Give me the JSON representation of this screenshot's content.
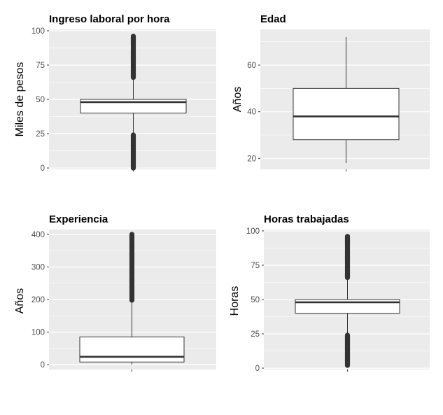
{
  "chart_data": [
    {
      "type": "boxplot",
      "title": "Ingreso laboral por hora",
      "xlabel": "",
      "ylabel": "Miles de pesos",
      "ylim": [
        -1,
        101
      ],
      "yticks": [
        0,
        25,
        50,
        75,
        100
      ],
      "yticklabels": [
        "0",
        "25",
        "50",
        "75",
        "100"
      ],
      "box": {
        "min": 25,
        "q1": 40,
        "median": 48,
        "q3": 50,
        "max": 65
      },
      "outliers_ranges": [
        [
          0,
          24
        ],
        [
          66,
          96
        ]
      ],
      "grid": true
    },
    {
      "type": "boxplot",
      "title": "Edad",
      "xlabel": "",
      "ylabel": "Años",
      "ylim": [
        15.3,
        75.3
      ],
      "yticks": [
        20,
        40,
        60
      ],
      "yticklabels": [
        "20",
        "40",
        "60"
      ],
      "box": {
        "min": 18,
        "q1": 28,
        "median": 38,
        "q3": 50,
        "max": 72
      },
      "outliers_ranges": [],
      "grid": true
    },
    {
      "type": "boxplot",
      "title": "Experiencia",
      "xlabel": "",
      "ylabel": "Años",
      "ylim": [
        -15,
        415
      ],
      "yticks": [
        0,
        100,
        200,
        300,
        400
      ],
      "yticklabels": [
        "0",
        "100",
        "200",
        "300",
        "400"
      ],
      "box": {
        "min": 0,
        "q1": 8,
        "median": 24,
        "q3": 85,
        "max": 195
      },
      "outliers_ranges": [
        [
          198,
          400
        ]
      ],
      "grid": true
    },
    {
      "type": "boxplot",
      "title": "Horas trabajadas",
      "xlabel": "",
      "ylabel": "Horas",
      "ylim": [
        -1,
        101
      ],
      "yticks": [
        0,
        25,
        50,
        75,
        100
      ],
      "yticklabels": [
        "0",
        "25",
        "50",
        "75",
        "100"
      ],
      "box": {
        "min": 25,
        "q1": 40,
        "median": 48,
        "q3": 50,
        "max": 65
      },
      "outliers_ranges": [
        [
          2,
          24
        ],
        [
          66,
          96
        ]
      ],
      "grid": true
    }
  ],
  "colors": {
    "panel_background": "#ebebeb",
    "grid_major": "#ffffff",
    "box_fill": "#ffffff",
    "box_stroke": "#333333",
    "outlier": "#333333"
  }
}
